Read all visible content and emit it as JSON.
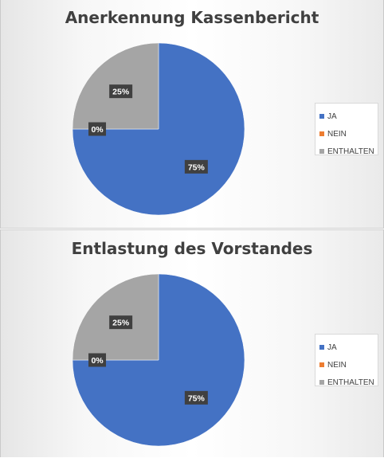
{
  "chart_data": [
    {
      "type": "pie",
      "title": "Anerkennung Kassenbericht",
      "categories": [
        "JA",
        "NEIN",
        "ENTHALTEN"
      ],
      "values": [
        75,
        0,
        25
      ],
      "data_labels": [
        "75%",
        "0%",
        "25%"
      ],
      "colors": [
        "#4472c4",
        "#ed7d31",
        "#a5a5a5"
      ],
      "legend": "right"
    },
    {
      "type": "pie",
      "title": "Entlastung des Vorstandes",
      "categories": [
        "JA",
        "NEIN",
        "ENTHALTEN"
      ],
      "values": [
        75,
        0,
        25
      ],
      "data_labels": [
        "75%",
        "0%",
        "25%"
      ],
      "colors": [
        "#4472c4",
        "#ed7d31",
        "#a5a5a5"
      ],
      "legend": "right"
    }
  ]
}
